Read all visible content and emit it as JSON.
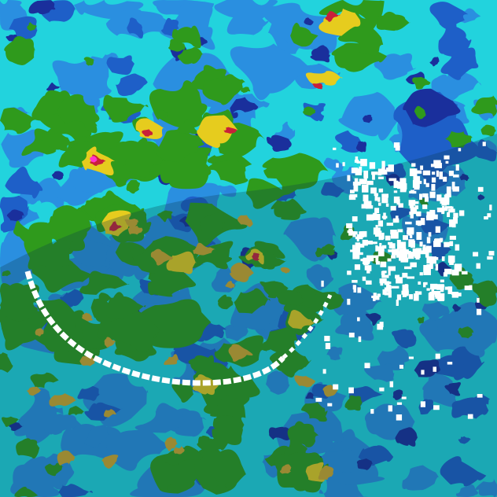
{
  "map": {
    "palette": {
      "background": "#22d3dd",
      "light_blue": "#2a8fe0",
      "blue": "#1e5fc8",
      "dark_blue": "#1a2f9c",
      "green": "#2f9a1c",
      "yellow": "#e6cc1e",
      "orange": "#d2a82a",
      "red": "#c8203a",
      "magenta": "#ff33cc",
      "white": "#ffffff",
      "shade_overlay": "#0a3a4a"
    }
  }
}
